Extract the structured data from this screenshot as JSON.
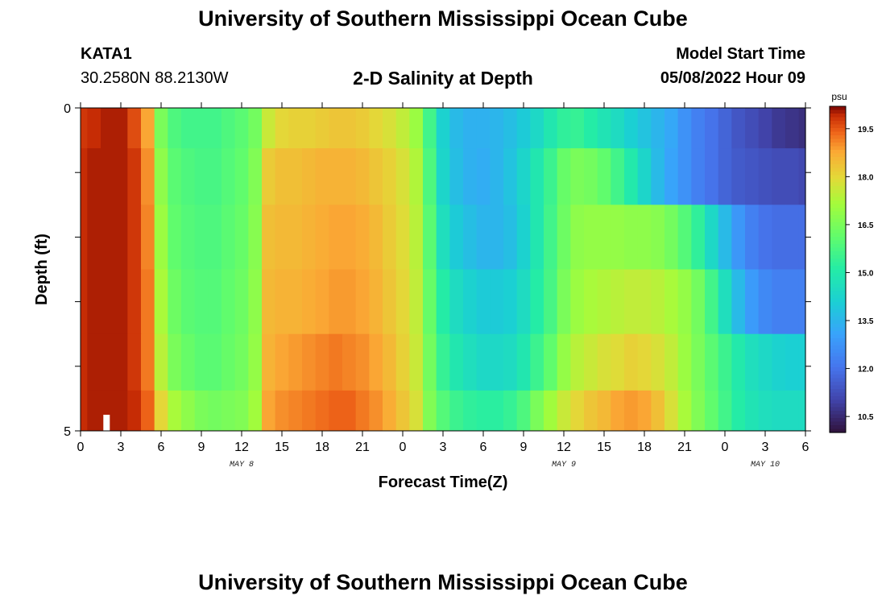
{
  "header": {
    "title": "University of Southern Mississippi Ocean Cube",
    "station_id": "KATA1",
    "coordinates": "30.2580N  88.2130W",
    "subtitle": "2-D Salinity at Depth",
    "model_start_label": "Model Start Time",
    "model_start_value": "05/08/2022 Hour 09"
  },
  "footer": {
    "title": "University of Southern Mississippi Ocean Cube"
  },
  "chart_data": {
    "type": "heatmap",
    "title": "2-D Salinity at Depth",
    "xlabel": "Forecast Time(Z)",
    "ylabel": "Depth (ft)",
    "x_tick_labels": [
      "0",
      "3",
      "6",
      "9",
      "12",
      "15",
      "18",
      "21",
      "0",
      "3",
      "6",
      "9",
      "12",
      "15",
      "18",
      "21",
      "0",
      "3",
      "6"
    ],
    "date_labels": [
      {
        "text": "MAY 8",
        "hour": 12
      },
      {
        "text": "MAY 9",
        "hour": 36
      },
      {
        "text": "MAY 10",
        "hour": 51
      }
    ],
    "x_range_hours": [
      0,
      54
    ],
    "y_tick_labels": [
      "0",
      "5"
    ],
    "y_range": [
      0,
      5
    ],
    "depth_rows": [
      0.25,
      1,
      2,
      3,
      4,
      4.75
    ],
    "hours": [
      0,
      1,
      2,
      3,
      4,
      5,
      6,
      7,
      8,
      9,
      10,
      11,
      12,
      13,
      14,
      15,
      16,
      17,
      18,
      19,
      20,
      21,
      22,
      23,
      24,
      25,
      26,
      27,
      28,
      29,
      30,
      31,
      32,
      33,
      34,
      35,
      36,
      37,
      38,
      39,
      40,
      41,
      42,
      43,
      44,
      45,
      46,
      47,
      48,
      49,
      50,
      51,
      52,
      53,
      54
    ],
    "salinity": [
      [
        19.8,
        19.9,
        20.0,
        20.0,
        19.6,
        18.8,
        16.5,
        15.8,
        15.6,
        15.6,
        15.6,
        15.8,
        16.0,
        16.4,
        17.6,
        18.0,
        18.1,
        18.1,
        18.2,
        18.3,
        18.3,
        18.2,
        18.0,
        17.8,
        17.5,
        17.0,
        15.6,
        14.2,
        13.6,
        13.4,
        13.4,
        13.5,
        13.7,
        14.0,
        14.4,
        14.9,
        15.3,
        15.4,
        15.1,
        14.8,
        14.5,
        14.1,
        13.8,
        13.5,
        13.2,
        12.7,
        12.3,
        12.0,
        11.7,
        11.4,
        11.2,
        11.0,
        10.8,
        10.7,
        10.6
      ],
      [
        19.9,
        20.0,
        20.0,
        20.0,
        19.8,
        19.0,
        16.8,
        16.0,
        15.8,
        15.7,
        15.7,
        15.9,
        16.1,
        16.6,
        18.2,
        18.4,
        18.4,
        18.5,
        18.6,
        18.6,
        18.6,
        18.5,
        18.3,
        18.1,
        17.8,
        17.3,
        15.8,
        14.3,
        13.7,
        13.4,
        13.3,
        13.5,
        13.8,
        14.3,
        14.9,
        15.5,
        16.2,
        16.5,
        16.4,
        16.1,
        15.6,
        15.0,
        14.3,
        13.6,
        13.1,
        12.7,
        12.3,
        12.0,
        11.7,
        11.5,
        11.4,
        11.3,
        11.2,
        11.2,
        11.1
      ],
      [
        19.9,
        20.0,
        20.0,
        20.0,
        19.8,
        19.1,
        17.0,
        16.1,
        15.9,
        15.8,
        15.8,
        16.0,
        16.2,
        16.7,
        18.4,
        18.5,
        18.5,
        18.6,
        18.7,
        18.8,
        18.8,
        18.7,
        18.5,
        18.2,
        17.9,
        17.4,
        16.0,
        14.6,
        14.0,
        13.7,
        13.5,
        13.5,
        13.7,
        14.2,
        14.9,
        15.6,
        16.3,
        16.8,
        16.9,
        16.9,
        16.9,
        16.8,
        16.8,
        16.7,
        16.4,
        15.9,
        15.3,
        14.4,
        13.6,
        12.8,
        12.3,
        12.0,
        11.9,
        11.9,
        11.9
      ],
      [
        19.9,
        20.0,
        20.0,
        20.0,
        19.8,
        19.2,
        17.2,
        16.3,
        16.0,
        15.9,
        15.9,
        16.1,
        16.3,
        16.8,
        18.5,
        18.6,
        18.6,
        18.7,
        18.8,
        18.9,
        18.9,
        18.8,
        18.6,
        18.3,
        18.0,
        17.5,
        16.2,
        15.1,
        14.5,
        14.2,
        14.0,
        14.0,
        14.1,
        14.5,
        15.1,
        15.7,
        16.5,
        17.0,
        17.2,
        17.3,
        17.4,
        17.5,
        17.5,
        17.4,
        17.2,
        16.9,
        16.4,
        15.6,
        14.6,
        13.6,
        12.9,
        12.5,
        12.3,
        12.3,
        12.3
      ],
      [
        19.9,
        20.0,
        20.0,
        20.0,
        19.8,
        19.2,
        17.4,
        16.5,
        16.2,
        16.0,
        16.0,
        16.2,
        16.4,
        16.9,
        18.6,
        18.8,
        18.9,
        19.0,
        19.1,
        19.2,
        19.1,
        19.0,
        18.8,
        18.5,
        18.1,
        17.6,
        16.4,
        15.4,
        14.9,
        14.6,
        14.4,
        14.4,
        14.5,
        14.9,
        15.5,
        16.1,
        16.9,
        17.4,
        17.6,
        17.8,
        17.9,
        18.1,
        18.0,
        17.8,
        17.5,
        17.0,
        16.5,
        16.0,
        15.5,
        15.0,
        14.6,
        14.4,
        14.2,
        14.1,
        14.1
      ],
      [
        19.9,
        20.0,
        20.0,
        20.0,
        19.9,
        19.4,
        18.0,
        17.2,
        16.8,
        16.5,
        16.4,
        16.5,
        16.6,
        17.1,
        18.8,
        19.0,
        19.1,
        19.2,
        19.3,
        19.4,
        19.4,
        19.2,
        19.0,
        18.7,
        18.3,
        17.8,
        16.6,
        15.9,
        15.5,
        15.3,
        15.2,
        15.2,
        15.4,
        15.8,
        16.5,
        17.1,
        17.6,
        18.0,
        18.3,
        18.5,
        18.8,
        18.9,
        18.8,
        18.4,
        17.8,
        17.2,
        16.6,
        16.1,
        15.6,
        15.1,
        14.8,
        14.6,
        14.5,
        14.5,
        14.5
      ]
    ],
    "annotations": [
      {
        "type": "marker",
        "hour": 2,
        "depth_range": [
          4.0,
          5.0
        ],
        "color": "#ffffff"
      }
    ],
    "colorbar": {
      "label": "psu",
      "min": 10.0,
      "max": 20.2,
      "tick_values": [
        10.5,
        12.0,
        13.5,
        15.0,
        16.5,
        18.0,
        19.5
      ],
      "tick_labels": [
        "10.5",
        "12.0",
        "13.5",
        "15.0",
        "16.5",
        "18.0",
        "19.5"
      ],
      "colormap": "turbo"
    }
  }
}
